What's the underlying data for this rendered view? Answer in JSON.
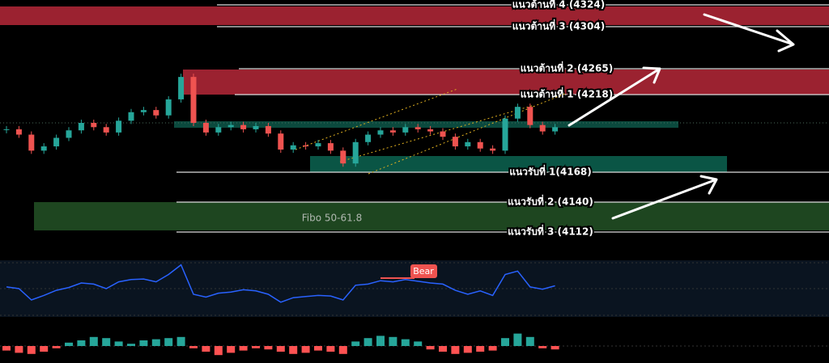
{
  "levels": [
    {
      "label": "แนวต้านที่ 4 (4324)"
    },
    {
      "label": "แนวต้านที่ 3 (4304)"
    },
    {
      "label": "แนวต้านที่ 2 (4265)"
    },
    {
      "label": "แนวต้านที่ 1 (4218)"
    },
    {
      "label": "แนวรับที่ 1(4168)"
    },
    {
      "label": "แนวรับที่ 2 (4140)"
    },
    {
      "label": "แนวรับที่ 3 (4112)"
    }
  ],
  "zone_label": "Fibo 50-61.8",
  "signal_label": "Bear",
  "chart_data": [
    {
      "type": "candlestick",
      "ylim": [
        4102,
        4329
      ],
      "colors": {
        "up": "#26a69a",
        "down": "#ef5350"
      },
      "values": [
        4208,
        4203,
        4188,
        4192,
        4200,
        4207,
        4214,
        4210,
        4205,
        4216,
        4224,
        4226,
        4221,
        4236,
        4257,
        4214,
        4205,
        4210,
        4212,
        4208,
        4211,
        4204,
        4189,
        4193,
        4192,
        4195,
        4188,
        4176,
        4196,
        4203,
        4207,
        4205,
        4210,
        4208,
        4206,
        4201,
        4192,
        4196,
        4190,
        4188,
        4218,
        4229,
        4212,
        4206,
        4210
      ]
    },
    {
      "type": "line",
      "ylim": [
        0,
        100
      ],
      "color": "#2962ff",
      "values": [
        53,
        50,
        30,
        38,
        47,
        52,
        60,
        58,
        50,
        62,
        66,
        67,
        62,
        75,
        92,
        40,
        35,
        42,
        44,
        48,
        46,
        40,
        26,
        34,
        36,
        38,
        37,
        30,
        56,
        58,
        64,
        62,
        66,
        63,
        60,
        58,
        47,
        40,
        46,
        38,
        75,
        81,
        53,
        49,
        55
      ]
    },
    {
      "type": "bar",
      "ylim": [
        -30,
        30
      ],
      "colors": {
        "up": "#26a69a",
        "down": "#ff5252"
      },
      "values": [
        -8,
        -12,
        -14,
        -10,
        -4,
        6,
        10,
        16,
        14,
        8,
        4,
        10,
        12,
        14,
        16,
        -4,
        -10,
        -16,
        -12,
        -8,
        -4,
        -6,
        -10,
        -14,
        -12,
        -8,
        -10,
        -14,
        8,
        14,
        18,
        16,
        12,
        8,
        -6,
        -10,
        -14,
        -12,
        -10,
        -8,
        14,
        22,
        16,
        -4,
        -6
      ]
    }
  ]
}
